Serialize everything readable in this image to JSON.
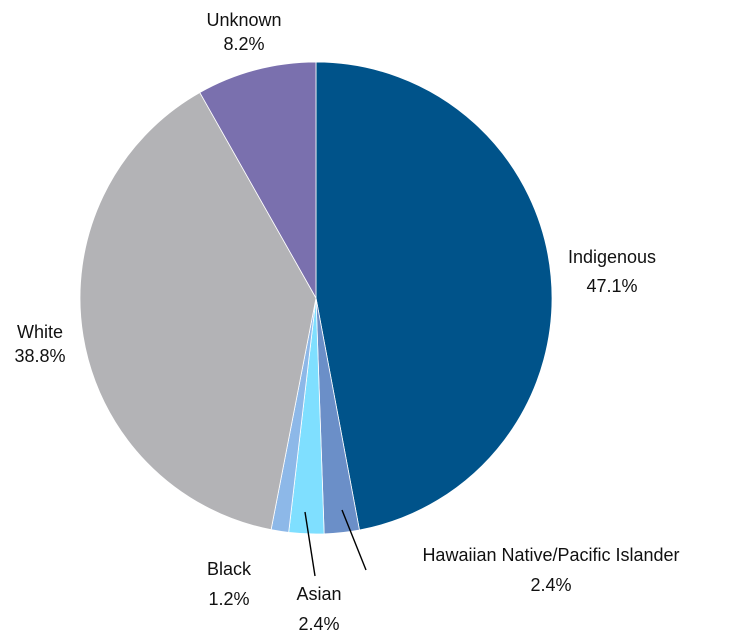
{
  "chart_data": {
    "type": "pie",
    "start": "top",
    "direction": "clockwise",
    "slices": [
      {
        "label": "Indigenous",
        "value": 47.1,
        "value_label": "47.1%",
        "color": "#00538A"
      },
      {
        "label": "Hawaiian Native/Pacific Islander",
        "value": 2.4,
        "value_label": "2.4%",
        "color": "#6B8FC8"
      },
      {
        "label": "Asian",
        "value": 2.4,
        "value_label": "2.4%",
        "color": "#7FDFFF"
      },
      {
        "label": "Black",
        "value": 1.2,
        "value_label": "1.2%",
        "color": "#8DB8E8"
      },
      {
        "label": "White",
        "value": 38.8,
        "value_label": "38.8%",
        "color": "#B3B3B6"
      },
      {
        "label": "Unknown",
        "value": 8.2,
        "value_label": "8.2%",
        "color": "#7A70AE"
      }
    ]
  }
}
